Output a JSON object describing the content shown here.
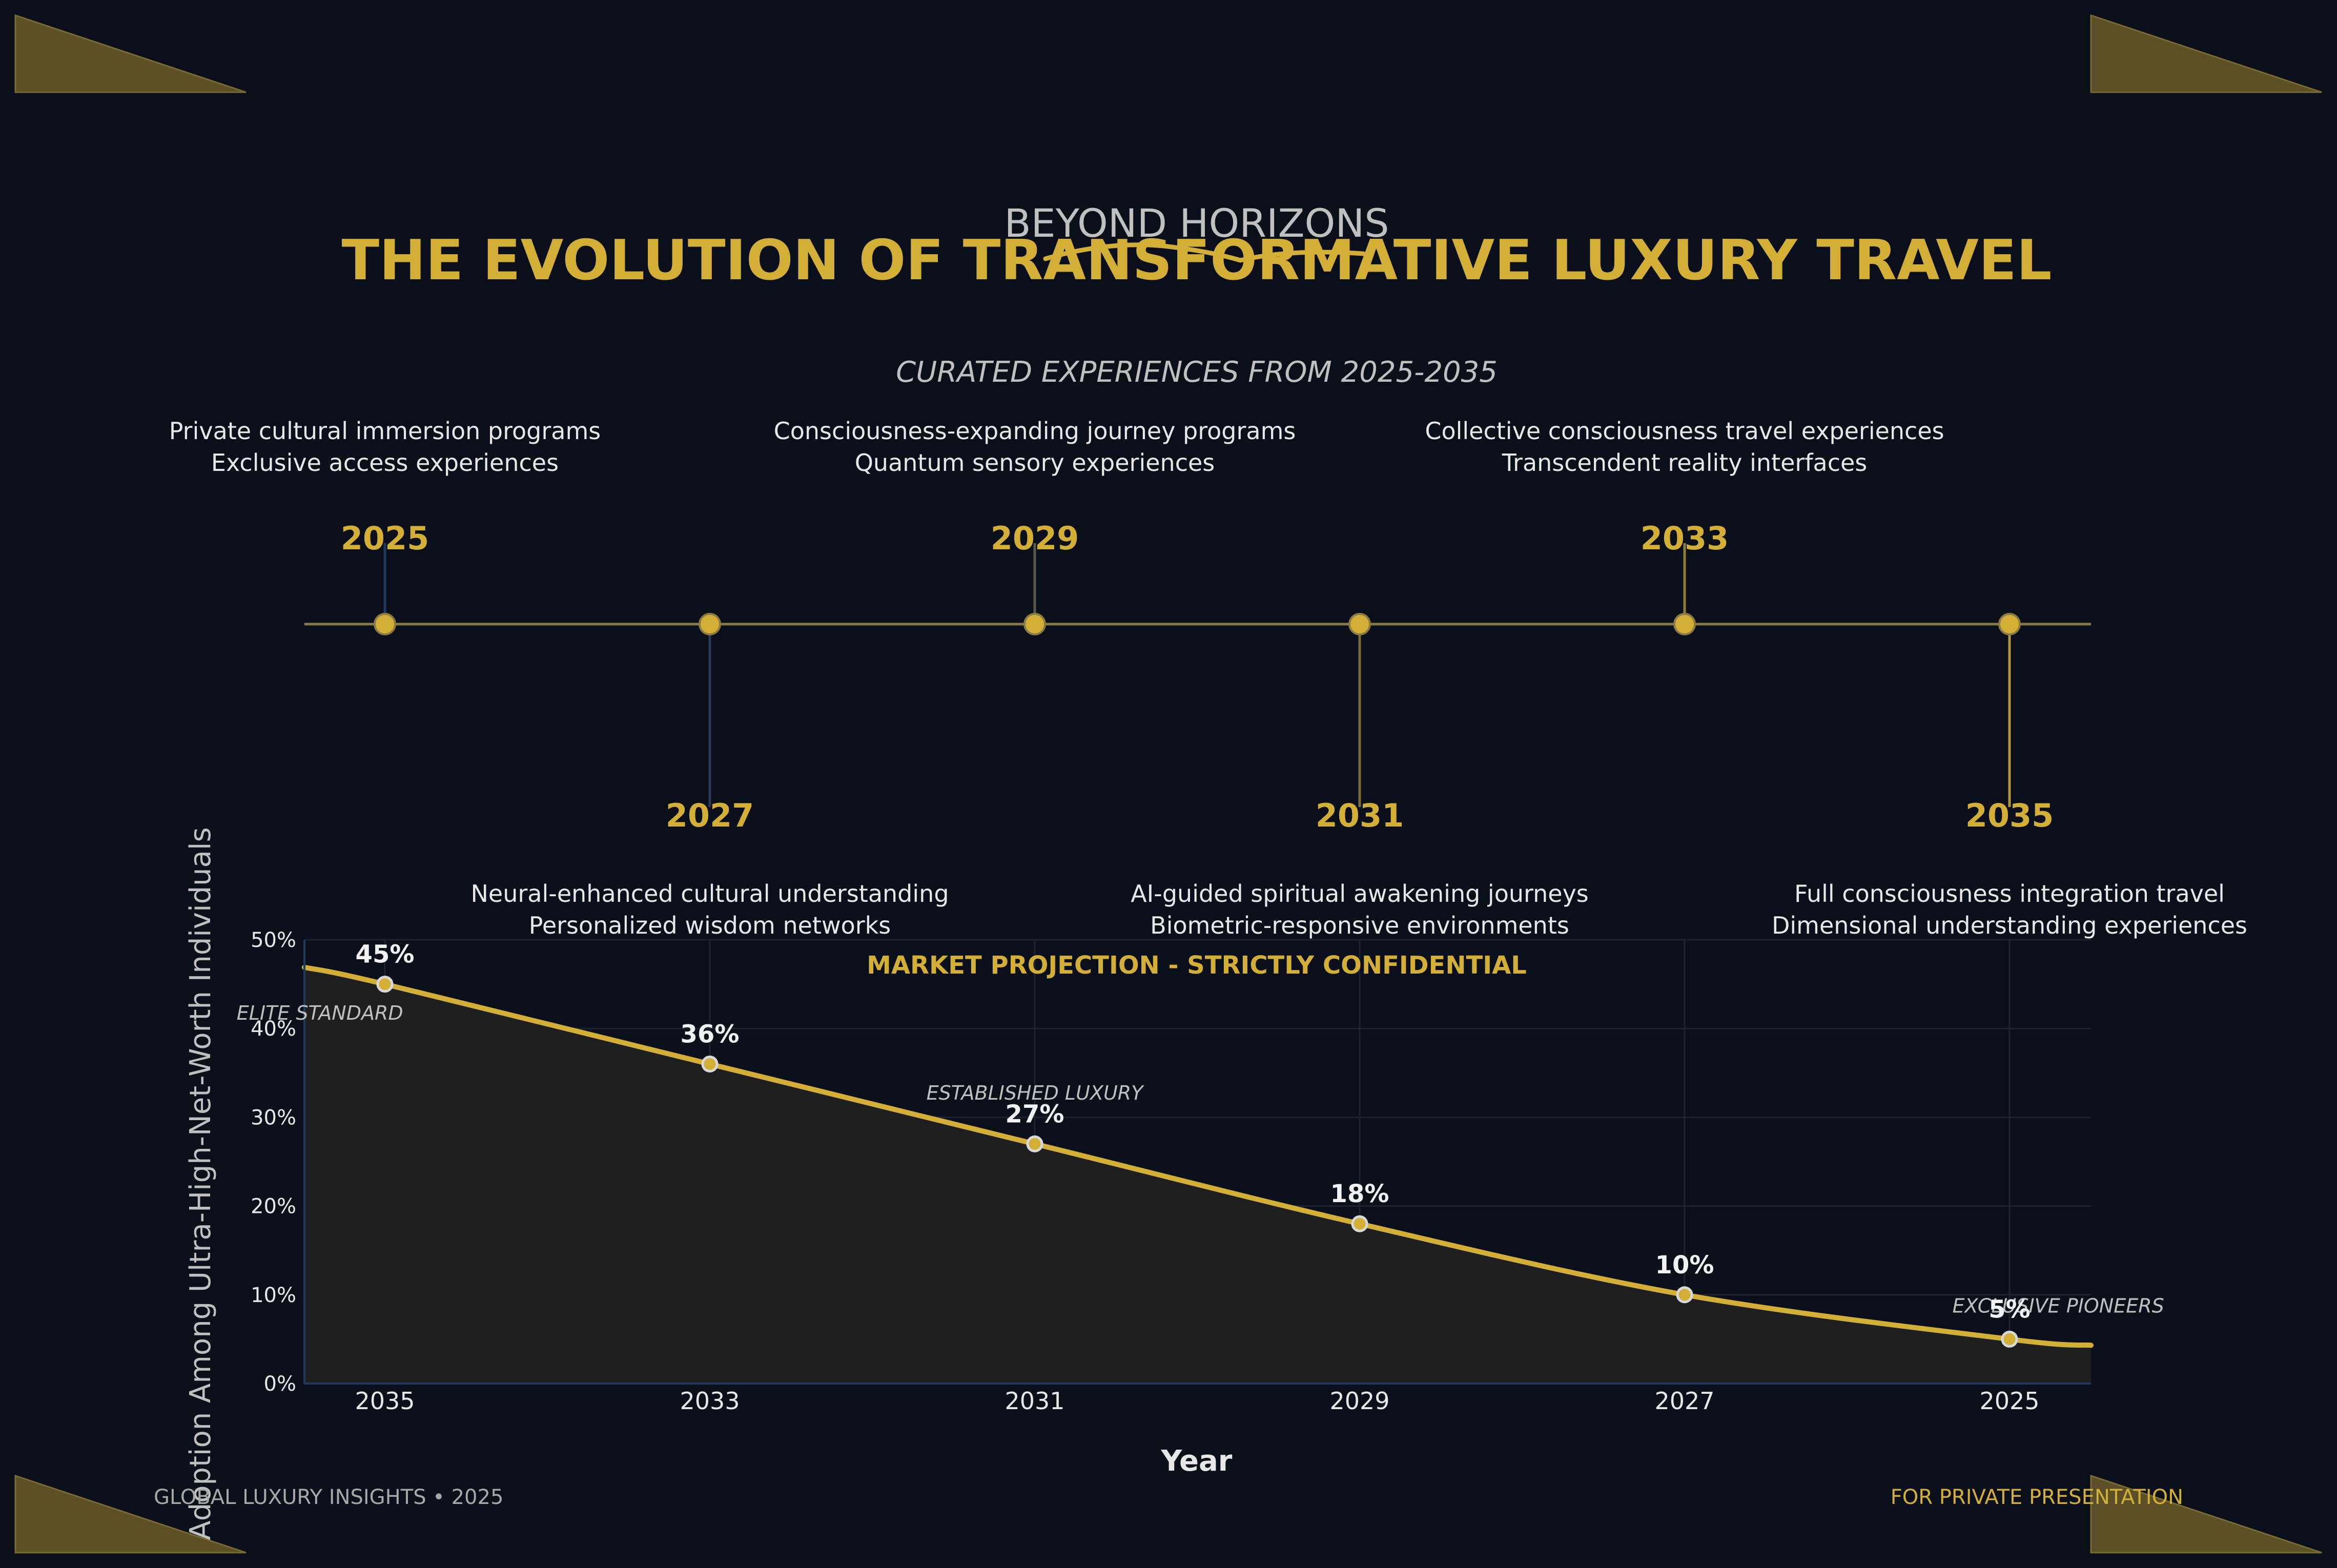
{
  "header": {
    "kicker": "BEYOND HORIZONS",
    "title": "THE EVOLUTION OF TRANSFORMATIVE LUXURY TRAVEL",
    "subtitle": "CURATED EXPERIENCES FROM 2025-2035"
  },
  "colors": {
    "background": "#0a0f1a",
    "gold": "#d4af37",
    "text_light": "#e8e8e8",
    "text_muted": "#c0c0c0",
    "corner_fill": "#5c4f27",
    "area_fill": "#1f1f1f",
    "axis_blue": "#1e3a5f"
  },
  "timeline": {
    "milestones": [
      {
        "year": "2025",
        "position": "above",
        "lines": [
          "Private cultural immersion programs",
          "Exclusive access experiences"
        ]
      },
      {
        "year": "2027",
        "position": "below",
        "lines": [
          "Neural-enhanced cultural understanding",
          "Personalized wisdom networks"
        ]
      },
      {
        "year": "2029",
        "position": "above",
        "lines": [
          "Consciousness-expanding journey programs",
          "Quantum sensory experiences"
        ]
      },
      {
        "year": "2031",
        "position": "below",
        "lines": [
          "AI-guided spiritual awakening journeys",
          "Biometric-responsive environments"
        ]
      },
      {
        "year": "2033",
        "position": "above",
        "lines": [
          "Collective consciousness travel experiences",
          "Transcendent reality interfaces"
        ]
      },
      {
        "year": "2035",
        "position": "below",
        "lines": [
          "Full consciousness integration travel",
          "Dimensional understanding experiences"
        ]
      }
    ]
  },
  "chart_data": {
    "type": "area",
    "title": "MARKET PROJECTION - STRICTLY CONFIDENTIAL",
    "xlabel": "Year",
    "ylabel": "Adoption Among Ultra-High-Net-Worth Individuals",
    "categories": [
      "2035",
      "2033",
      "2031",
      "2029",
      "2027",
      "2025"
    ],
    "values": [
      45,
      36,
      27,
      18,
      10,
      5
    ],
    "value_labels": [
      "45%",
      "36%",
      "27%",
      "18%",
      "10%",
      "5%"
    ],
    "ylim": [
      0,
      50
    ],
    "yticks": [
      0,
      10,
      20,
      30,
      40,
      50
    ],
    "ytick_labels": [
      "0%",
      "10%",
      "20%",
      "30%",
      "40%",
      "50%"
    ],
    "grid": true,
    "annotations": [
      {
        "text": "ELITE STANDARD",
        "x_index": -0.2,
        "y": 41
      },
      {
        "text": "ESTABLISHED LUXURY",
        "x_index": 2.0,
        "y": 32
      },
      {
        "text": "EXCLUSIVE PIONEERS",
        "x_index": 5.15,
        "y": 8
      }
    ]
  },
  "footer": {
    "left": "GLOBAL LUXURY INSIGHTS • 2025",
    "right": "FOR PRIVATE PRESENTATION"
  }
}
